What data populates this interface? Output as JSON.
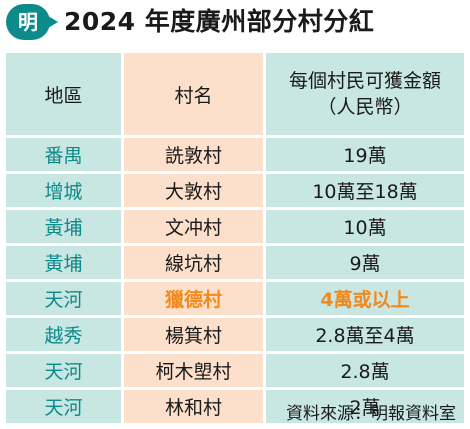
{
  "header": {
    "logo_text": "明",
    "title": "2024 年度廣州部分村分紅"
  },
  "colors": {
    "teal": "#0d8a8a",
    "light_teal": "#c8e6e2",
    "peach": "#fde0cc",
    "highlight_orange": "#f08a1c"
  },
  "table": {
    "columns": [
      "地區",
      "村名",
      "每個村民可獲金額",
      "（人民幣）"
    ],
    "rows": [
      {
        "district": "番禺",
        "village": "詵敦村",
        "amount": "19萬"
      },
      {
        "district": "增城",
        "village": "大敦村",
        "amount": "10萬至18萬"
      },
      {
        "district": "黃埔",
        "village": "文冲村",
        "amount": "10萬"
      },
      {
        "district": "黃埔",
        "village": "線坑村",
        "amount": "9萬"
      },
      {
        "district": "天河",
        "village": "獵德村",
        "amount": "4萬或以上"
      },
      {
        "district": "越秀",
        "village": "楊箕村",
        "amount": "2.8萬至4萬"
      },
      {
        "district": "天河",
        "village": "柯木塱村",
        "amount": "2.8萬"
      },
      {
        "district": "天河",
        "village": "林和村",
        "amount": "2萬"
      }
    ],
    "highlight_row": "獵德村"
  },
  "source": "資料來源：明報資料室"
}
